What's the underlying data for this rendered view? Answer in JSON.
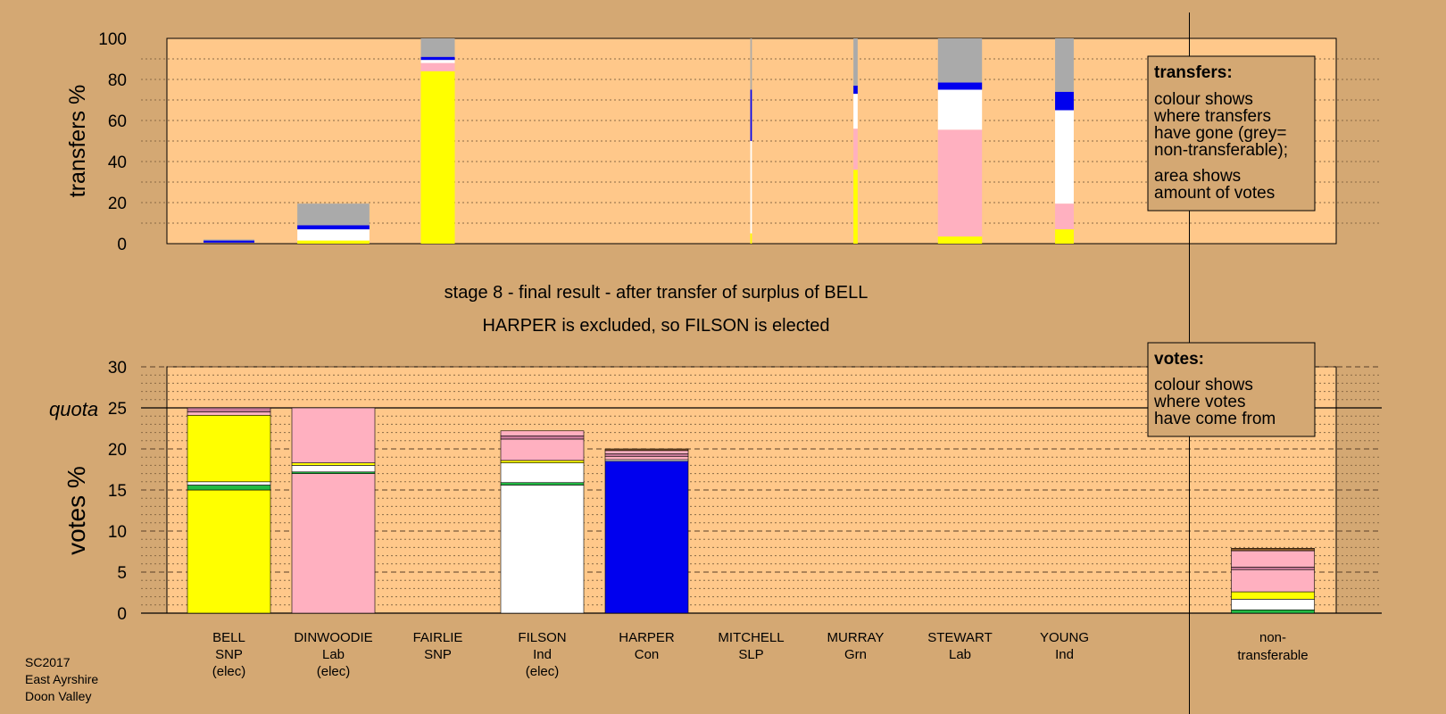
{
  "colors": {
    "background": "#d4a873",
    "plot_area": "#ffc88a",
    "yellow": "#ffff00",
    "pink": "#ffb0c0",
    "white": "#ffffff",
    "blue": "#0000ee",
    "green": "#22bb44",
    "grey": "#aaaaaa",
    "brown": "#8b5a2b",
    "darkpink": "#c97a9a"
  },
  "footer": {
    "line1": "SC2017",
    "line2": "East Ayrshire",
    "line3": "Doon Valley"
  },
  "stage": {
    "line1": "stage 8 - final result - after transfer of surplus of BELL",
    "line2": "HARPER is excluded, so FILSON is elected"
  },
  "legend_transfers": {
    "title": "transfers:",
    "lines": [
      "colour shows",
      "where transfers",
      "have gone (grey=",
      "non-transferable);"
    ],
    "lines2": [
      "area shows",
      "amount of votes"
    ]
  },
  "legend_votes": {
    "title": "votes:",
    "lines": [
      "colour shows",
      "where votes",
      "have come from"
    ]
  },
  "candidates": [
    {
      "name": "BELL",
      "party": "SNP",
      "status": "(elec)"
    },
    {
      "name": "DINWOODIE",
      "party": "Lab",
      "status": "(elec)"
    },
    {
      "name": "FAIRLIE",
      "party": "SNP",
      "status": ""
    },
    {
      "name": "FILSON",
      "party": "Ind",
      "status": "(elec)"
    },
    {
      "name": "HARPER",
      "party": "Con",
      "status": ""
    },
    {
      "name": "MITCHELL",
      "party": "SLP",
      "status": ""
    },
    {
      "name": "MURRAY",
      "party": "Grn",
      "status": ""
    },
    {
      "name": "STEWART",
      "party": "Lab",
      "status": ""
    },
    {
      "name": "YOUNG",
      "party": "Ind",
      "status": ""
    }
  ],
  "nontransferable_label": {
    "line1": "non-",
    "line2": "transferable"
  },
  "chart_data": [
    {
      "type": "bar",
      "ylabel": "transfers %",
      "ylim": [
        0,
        100
      ],
      "yticks": [
        0,
        20,
        40,
        60,
        80,
        100
      ],
      "grid": "dotted every 10",
      "bars": [
        {
          "index": 0,
          "width_frac": 0.6,
          "segments": [
            {
              "color": "blue",
              "from": 0.5,
              "to": 1.5
            },
            {
              "color": "grey",
              "from": 1.5,
              "to": 2
            }
          ]
        },
        {
          "index": 1,
          "width_frac": 0.85,
          "segments": [
            {
              "color": "yellow",
              "from": 0,
              "to": 1.5
            },
            {
              "color": "white",
              "from": 1.5,
              "to": 7
            },
            {
              "color": "blue",
              "from": 7,
              "to": 9
            },
            {
              "color": "grey",
              "from": 9,
              "to": 19.5
            }
          ]
        },
        {
          "index": 2,
          "width_frac": 0.4,
          "segments": [
            {
              "color": "yellow",
              "from": 0,
              "to": 84
            },
            {
              "color": "pink",
              "from": 84,
              "to": 88
            },
            {
              "color": "white",
              "from": 88,
              "to": 89.5
            },
            {
              "color": "blue",
              "from": 89.5,
              "to": 91
            },
            {
              "color": "grey",
              "from": 91,
              "to": 100
            }
          ]
        },
        {
          "index": 5,
          "width_frac": 0.018,
          "segments": [
            {
              "color": "yellow",
              "from": 0,
              "to": 5
            },
            {
              "color": "white",
              "from": 5,
              "to": 50
            },
            {
              "color": "blue",
              "from": 50,
              "to": 75
            },
            {
              "color": "grey",
              "from": 75,
              "to": 100
            }
          ]
        },
        {
          "index": 6,
          "width_frac": 0.05,
          "segments": [
            {
              "color": "yellow",
              "from": 0,
              "to": 36
            },
            {
              "color": "pink",
              "from": 36,
              "to": 56
            },
            {
              "color": "white",
              "from": 56,
              "to": 73
            },
            {
              "color": "blue",
              "from": 73,
              "to": 77
            },
            {
              "color": "grey",
              "from": 77,
              "to": 100
            }
          ]
        },
        {
          "index": 7,
          "width_frac": 0.52,
          "segments": [
            {
              "color": "yellow",
              "from": 0,
              "to": 3.5
            },
            {
              "color": "pink",
              "from": 3.5,
              "to": 55.5
            },
            {
              "color": "white",
              "from": 55.5,
              "to": 75
            },
            {
              "color": "blue",
              "from": 75,
              "to": 78.5
            },
            {
              "color": "grey",
              "from": 78.5,
              "to": 100
            }
          ]
        },
        {
          "index": 8,
          "width_frac": 0.22,
          "segments": [
            {
              "color": "yellow",
              "from": 0,
              "to": 7
            },
            {
              "color": "pink",
              "from": 7,
              "to": 19.5
            },
            {
              "color": "white",
              "from": 19.5,
              "to": 65
            },
            {
              "color": "blue",
              "from": 65,
              "to": 74
            },
            {
              "color": "grey",
              "from": 74,
              "to": 100
            }
          ]
        }
      ]
    },
    {
      "type": "bar",
      "ylabel": "votes %",
      "ylim": [
        0,
        30
      ],
      "yticks": [
        0,
        5,
        10,
        15,
        20,
        25,
        30
      ],
      "quota": {
        "label": "quota",
        "value": 25
      },
      "grid": "dashed every 5, dotted every 1",
      "bars": [
        {
          "index": 0,
          "segments": [
            {
              "color": "yellow",
              "from": 0,
              "to": 15
            },
            {
              "color": "green",
              "from": 15,
              "to": 15.6
            },
            {
              "color": "white",
              "from": 15.6,
              "to": 16
            },
            {
              "color": "yellow",
              "from": 16,
              "to": 24.1
            },
            {
              "color": "pink",
              "from": 24.1,
              "to": 24.5
            },
            {
              "color": "darkpink",
              "from": 24.5,
              "to": 25
            }
          ]
        },
        {
          "index": 1,
          "segments": [
            {
              "color": "pink",
              "from": 0,
              "to": 17
            },
            {
              "color": "green",
              "from": 17,
              "to": 17.2
            },
            {
              "color": "white",
              "from": 17.2,
              "to": 18
            },
            {
              "color": "yellow",
              "from": 18,
              "to": 18.3
            },
            {
              "color": "pink",
              "from": 18.3,
              "to": 25
            }
          ]
        },
        {
          "index": 3,
          "segments": [
            {
              "color": "white",
              "from": 0,
              "to": 15.6
            },
            {
              "color": "green",
              "from": 15.6,
              "to": 15.9
            },
            {
              "color": "white",
              "from": 15.9,
              "to": 18.3
            },
            {
              "color": "yellow",
              "from": 18.3,
              "to": 18.6
            },
            {
              "color": "pink",
              "from": 18.6,
              "to": 21.2
            },
            {
              "color": "darkpink",
              "from": 21.2,
              "to": 21.6
            },
            {
              "color": "pink",
              "from": 21.6,
              "to": 22.2
            }
          ]
        },
        {
          "index": 4,
          "segments": [
            {
              "color": "blue",
              "from": 0,
              "to": 18.5
            },
            {
              "color": "white",
              "from": 18.5,
              "to": 18.7
            },
            {
              "color": "pink",
              "from": 18.7,
              "to": 19.1
            },
            {
              "color": "darkpink",
              "from": 19.1,
              "to": 19.4
            },
            {
              "color": "pink",
              "from": 19.4,
              "to": 19.8
            },
            {
              "color": "brown",
              "from": 19.8,
              "to": 20
            }
          ]
        },
        {
          "index": 9,
          "segments": [
            {
              "color": "green",
              "from": 0,
              "to": 0.4
            },
            {
              "color": "white",
              "from": 0.4,
              "to": 1.7
            },
            {
              "color": "yellow",
              "from": 1.7,
              "to": 2.6
            },
            {
              "color": "pink",
              "from": 2.6,
              "to": 5.3
            },
            {
              "color": "darkpink",
              "from": 5.3,
              "to": 5.6
            },
            {
              "color": "pink",
              "from": 5.6,
              "to": 7.6
            },
            {
              "color": "brown",
              "from": 7.6,
              "to": 7.9
            }
          ]
        }
      ]
    }
  ]
}
